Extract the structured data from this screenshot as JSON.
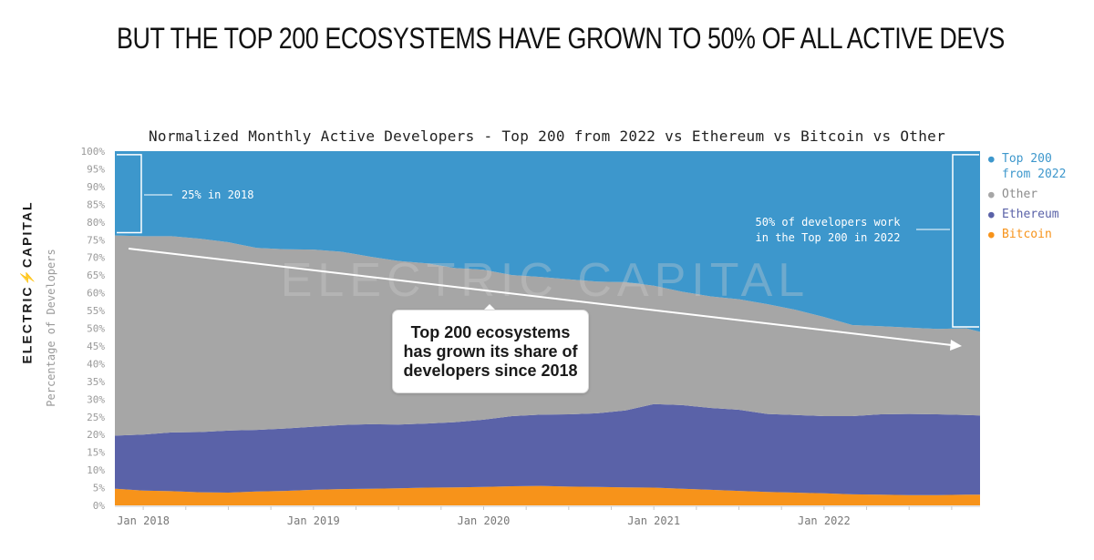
{
  "headline": "BUT THE TOP 200 ECOSYSTEMS HAVE GROWN TO 50% OF ALL ACTIVE DEVS",
  "brand": "ELECTRIC CAPITAL",
  "brand_mark": "ELECTRIC⚡CAPITAL",
  "chart_data": {
    "type": "area",
    "stacked": true,
    "normalized": true,
    "title": "Normalized Monthly Active Developers - Top 200 from 2022 vs Ethereum vs Bitcoin vs Other",
    "ylabel": "Percentage of Developers",
    "xlabel": "",
    "ylim": [
      0,
      100
    ],
    "y_ticks": [
      "0%",
      "5%",
      "10%",
      "15%",
      "20%",
      "25%",
      "30%",
      "35%",
      "40%",
      "45%",
      "50%",
      "55%",
      "60%",
      "65%",
      "70%",
      "75%",
      "80%",
      "85%",
      "90%",
      "95%",
      "100%"
    ],
    "x_ticks": [
      "Jan 2018",
      "Jan 2019",
      "Jan 2020",
      "Jan 2021",
      "Jan 2022"
    ],
    "x": [
      "2017-11",
      "2018-01",
      "2018-03",
      "2018-05",
      "2018-07",
      "2018-09",
      "2018-11",
      "2019-01",
      "2019-03",
      "2019-05",
      "2019-07",
      "2019-09",
      "2019-11",
      "2020-01",
      "2020-03",
      "2020-05",
      "2020-07",
      "2020-09",
      "2020-11",
      "2021-01",
      "2021-03",
      "2021-05",
      "2021-07",
      "2021-09",
      "2021-11",
      "2022-01",
      "2022-03",
      "2022-05",
      "2022-07",
      "2022-09",
      "2022-11",
      "2022-12"
    ],
    "series": [
      {
        "name": "Bitcoin",
        "color": "#f7931a",
        "values": [
          4.7,
          4.2,
          4.0,
          3.7,
          3.6,
          3.9,
          4.1,
          4.4,
          4.6,
          4.7,
          4.8,
          5.0,
          5.1,
          5.2,
          5.4,
          5.5,
          5.3,
          5.2,
          5.1,
          5.0,
          4.7,
          4.4,
          4.1,
          3.8,
          3.6,
          3.4,
          3.1,
          3.0,
          2.9,
          2.9,
          3.0,
          3.0
        ]
      },
      {
        "name": "Ethereum",
        "color": "#5a62a8",
        "values": [
          15.0,
          15.8,
          16.6,
          17.0,
          17.5,
          17.4,
          17.6,
          17.8,
          18.1,
          18.2,
          18.0,
          18.1,
          18.4,
          19.0,
          19.8,
          20.1,
          20.4,
          20.8,
          21.7,
          23.6,
          23.6,
          23.1,
          22.9,
          22.0,
          21.9,
          21.8,
          22.1,
          22.7,
          22.9,
          22.8,
          22.5,
          22.4
        ]
      },
      {
        "name": "Other",
        "color": "#a6a6a6",
        "values": [
          56.5,
          56.0,
          55.4,
          54.6,
          53.2,
          51.4,
          50.6,
          50.0,
          48.9,
          47.3,
          46.2,
          45.2,
          43.5,
          42.3,
          39.8,
          38.9,
          38.1,
          37.2,
          36.2,
          33.4,
          32.0,
          31.5,
          31.2,
          31.0,
          29.7,
          28.0,
          25.7,
          24.9,
          24.4,
          24.1,
          24.5,
          23.6
        ]
      },
      {
        "name": "Top 200 from 2022",
        "color": "#3d97cc",
        "values": [
          23.8,
          24.0,
          24.0,
          24.7,
          25.7,
          27.3,
          27.7,
          27.8,
          28.4,
          29.8,
          31.0,
          31.7,
          33.0,
          33.5,
          35.0,
          35.5,
          36.2,
          36.8,
          37.0,
          38.0,
          39.7,
          41.0,
          41.8,
          43.2,
          44.8,
          46.8,
          49.1,
          49.4,
          49.8,
          50.2,
          50.0,
          51.0
        ]
      }
    ],
    "legend": {
      "placement": "right",
      "items": [
        "Top 200 from 2022",
        "Other",
        "Ethereum",
        "Bitcoin"
      ]
    },
    "annotations": {
      "left_note": "25% in 2018",
      "right_note": "50% of developers work\nin the Top 200 in 2022",
      "callout": "Top 200 ecosystems\nhas grown its share of\ndevelopers since 2018"
    },
    "watermark": "ELECTRIC CAPITAL",
    "grid": false
  }
}
